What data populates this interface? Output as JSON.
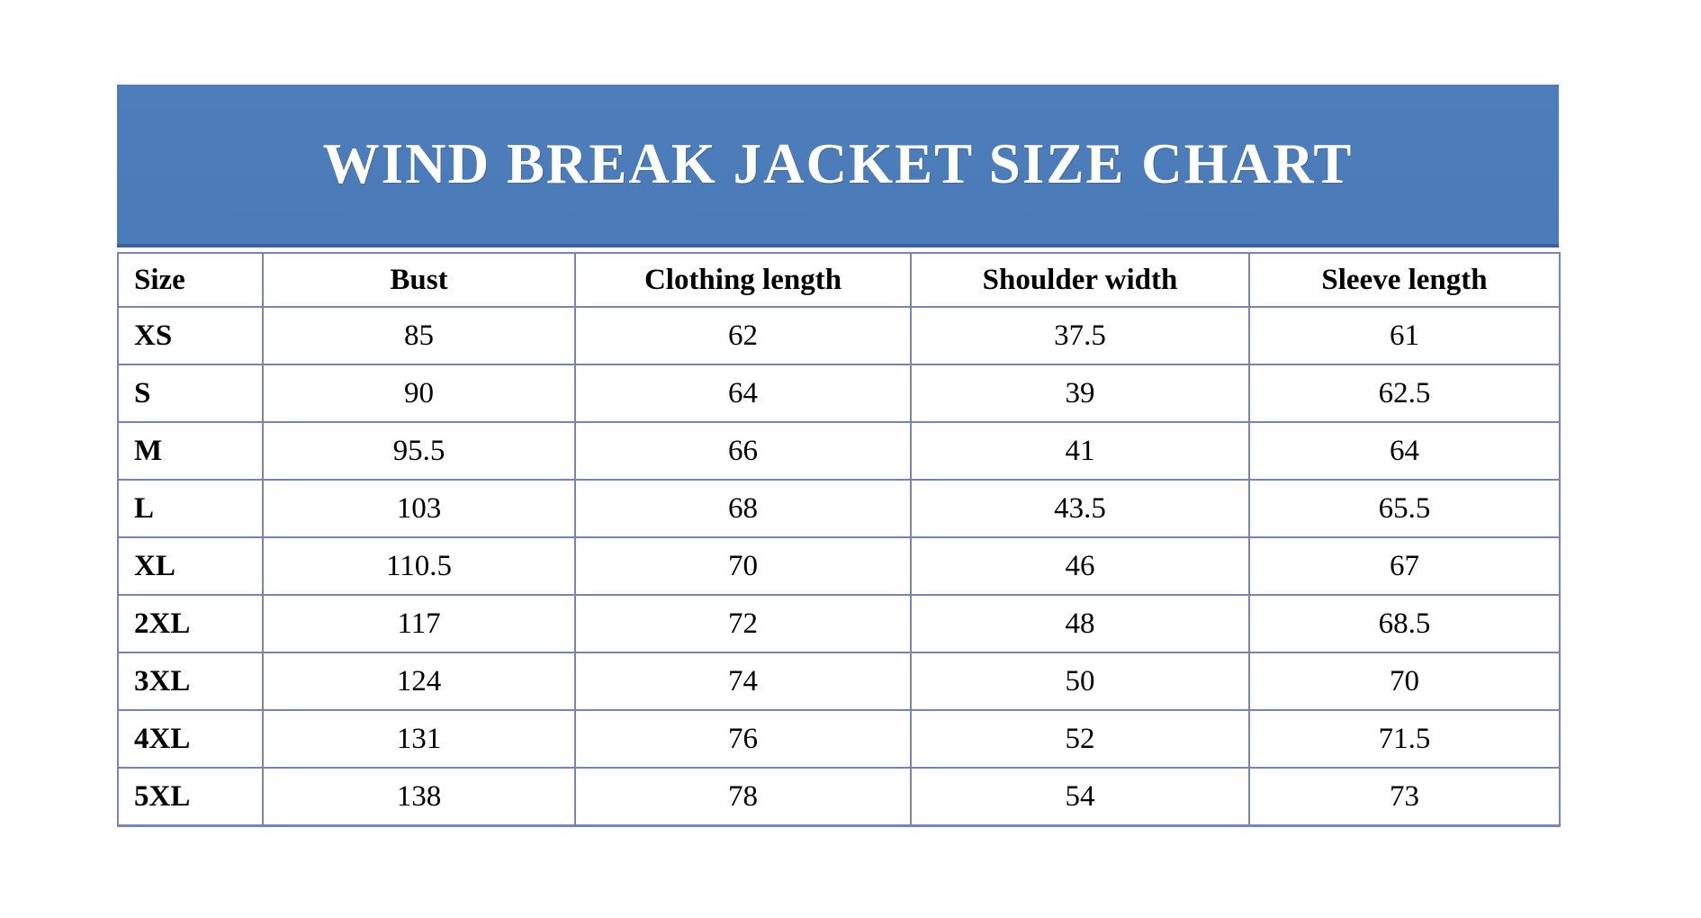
{
  "banner": {
    "title": "WIND BREAK JACKET SIZE CHART"
  },
  "colors": {
    "banner_bg": "#4e7dbb",
    "banner_bg2": "#4a7ab8",
    "banner_edge": "#3c5fa0",
    "border_color": "#7684bd",
    "title_color": "#ffffff",
    "text_color": "#000000"
  },
  "chart_data": {
    "type": "table",
    "title": "WIND BREAK JACKET SIZE CHART",
    "columns": [
      "Size",
      "Bust",
      "Clothing length",
      "Shoulder width",
      "Sleeve length"
    ],
    "rows": [
      [
        "XS",
        "85",
        "62",
        "37.5",
        "61"
      ],
      [
        "S",
        "90",
        "64",
        "39",
        "62.5"
      ],
      [
        "M",
        "95.5",
        "66",
        "41",
        "64"
      ],
      [
        "L",
        "103",
        "68",
        "43.5",
        "65.5"
      ],
      [
        "XL",
        "110.5",
        "70",
        "46",
        "67"
      ],
      [
        "2XL",
        "117",
        "72",
        "48",
        "68.5"
      ],
      [
        "3XL",
        "124",
        "74",
        "50",
        "70"
      ],
      [
        "4XL",
        "131",
        "76",
        "52",
        "71.5"
      ],
      [
        "5XL",
        "138",
        "78",
        "54",
        "73"
      ]
    ]
  }
}
